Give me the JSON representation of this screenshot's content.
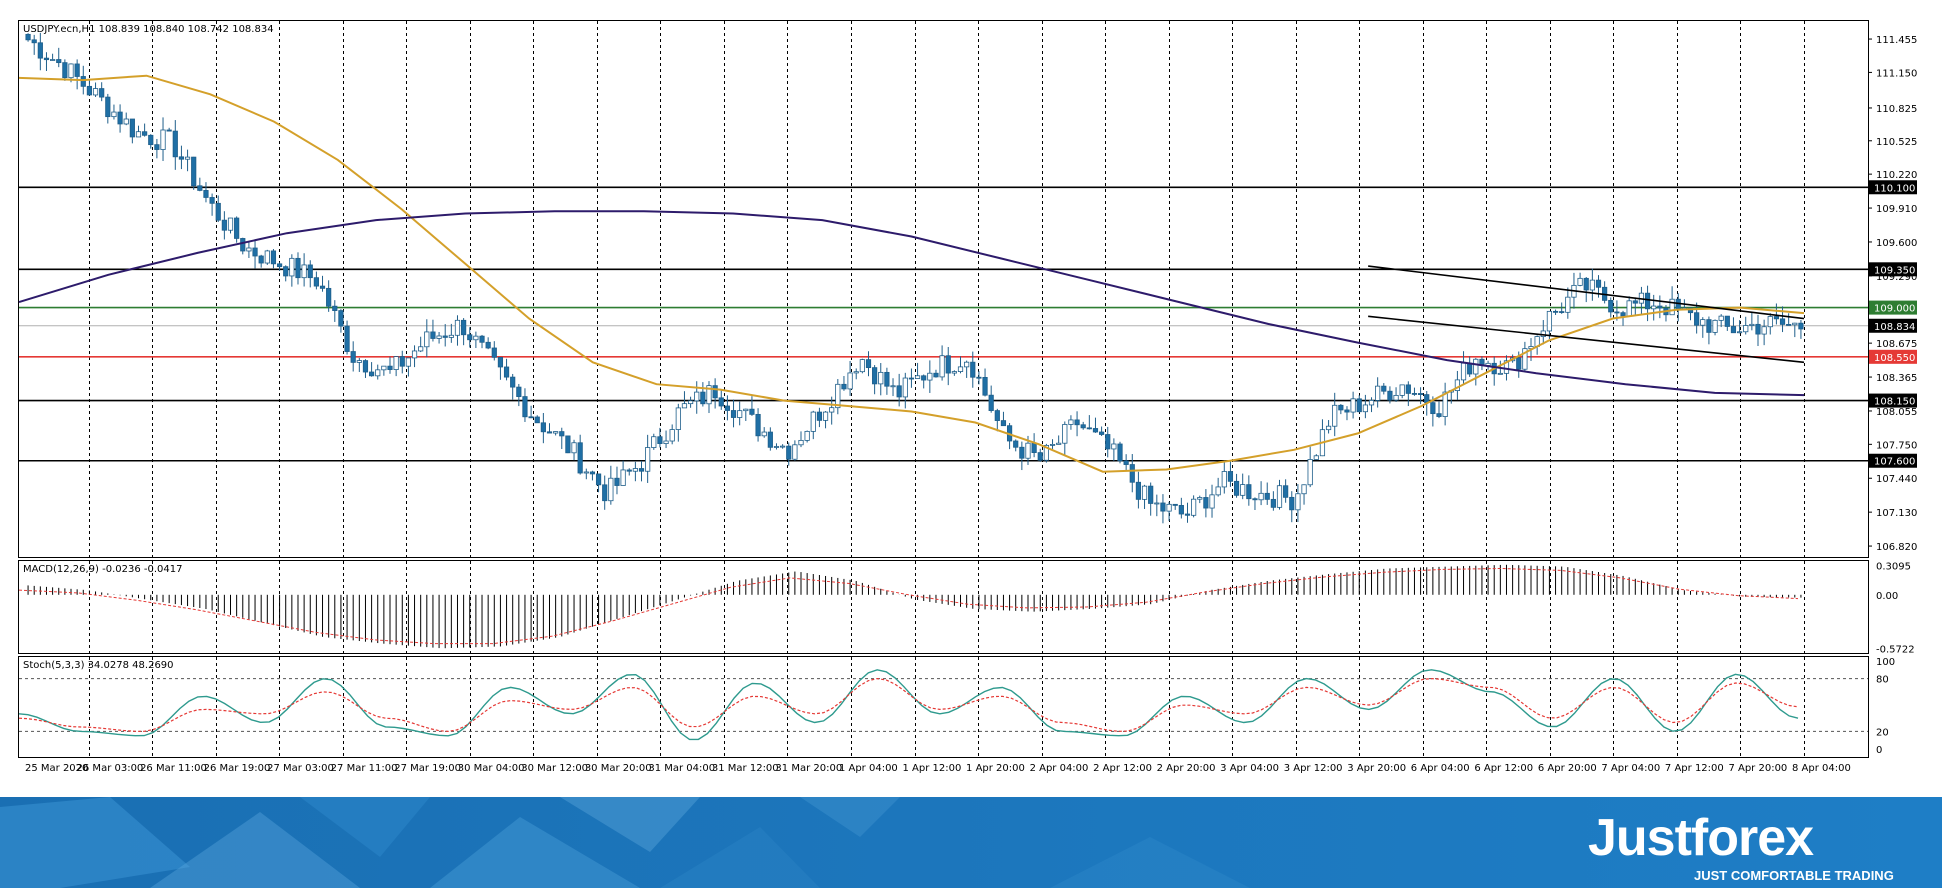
{
  "colors": {
    "background": "#ffffff",
    "candle_up": "#ffffff",
    "candle_down": "#1f6fa5",
    "ma_fast": "#d4a02a",
    "ma_slow": "#2d1b6b",
    "line_black": "#000000",
    "line_green": "#2e7d32",
    "line_red": "#e53935",
    "stoch_main": "#2e9a8e",
    "stoch_signal": "#e53935",
    "brand_bg": "#1e78bf"
  },
  "chart_data": [
    {
      "type": "candlestick",
      "title": "USDJPY.ecn,H1  108.839 108.840 108.742 108.834",
      "y_ticks": [
        "111.455",
        "111.150",
        "110.825",
        "110.525",
        "110.220",
        "109.910",
        "109.600",
        "109.290",
        "108.675",
        "108.365",
        "108.055",
        "107.750",
        "107.440",
        "107.130",
        "106.820"
      ],
      "ylim": [
        106.72,
        111.62
      ],
      "x_labels": [
        "25 Mar 2020",
        "26 Mar 03:00",
        "26 Mar 11:00",
        "26 Mar 19:00",
        "27 Mar 03:00",
        "27 Mar 11:00",
        "27 Mar 19:00",
        "30 Mar 04:00",
        "30 Mar 12:00",
        "30 Mar 20:00",
        "31 Mar 04:00",
        "31 Mar 12:00",
        "31 Mar 20:00",
        "1 Apr 04:00",
        "1 Apr 12:00",
        "1 Apr 20:00",
        "2 Apr 04:00",
        "2 Apr 12:00",
        "2 Apr 20:00",
        "3 Apr 04:00",
        "3 Apr 12:00",
        "3 Apr 20:00",
        "6 Apr 04:00",
        "6 Apr 12:00",
        "6 Apr 20:00",
        "7 Apr 04:00",
        "7 Apr 12:00",
        "7 Apr 20:00",
        "8 Apr 04:00"
      ],
      "close_path": [
        111.45,
        111.2,
        110.9,
        110.6,
        110.5,
        109.95,
        109.55,
        109.4,
        109.25,
        108.55,
        108.4,
        108.7,
        108.85,
        108.4,
        108.0,
        107.7,
        107.3,
        107.6,
        108.05,
        108.25,
        107.95,
        107.7,
        108.1,
        108.55,
        108.2,
        108.45,
        108.55,
        107.8,
        107.6,
        107.95,
        107.65,
        107.2,
        107.1,
        107.4,
        107.3,
        107.25,
        108.0,
        108.15,
        108.3,
        108.1,
        108.55,
        108.45,
        108.9,
        109.2,
        109.0,
        109.05,
        108.9,
        108.8,
        108.85,
        108.83
      ],
      "levels": [
        {
          "value": 110.1,
          "label": "110.100",
          "color": "#000000"
        },
        {
          "value": 109.35,
          "label": "109.350",
          "color": "#000000"
        },
        {
          "value": 109.0,
          "label": "109.000",
          "color": "#2e7d32"
        },
        {
          "value": 108.834,
          "label": "108.834",
          "color": "#000000"
        },
        {
          "value": 108.55,
          "label": "108.550",
          "color": "#e53935"
        },
        {
          "value": 108.15,
          "label": "108.150",
          "color": "#000000"
        },
        {
          "value": 107.6,
          "label": "107.600",
          "color": "#000000"
        }
      ],
      "ma_fast": [
        111.1,
        111.08,
        111.12,
        110.95,
        110.7,
        110.35,
        109.9,
        109.4,
        108.9,
        108.5,
        108.3,
        108.25,
        108.15,
        108.1,
        108.05,
        107.95,
        107.75,
        107.5,
        107.52,
        107.6,
        107.7,
        107.85,
        108.1,
        108.4,
        108.7,
        108.9,
        108.98,
        109.0,
        108.95
      ],
      "ma_slow": [
        109.05,
        109.3,
        109.5,
        109.68,
        109.8,
        109.86,
        109.88,
        109.88,
        109.86,
        109.8,
        109.65,
        109.45,
        109.25,
        109.05,
        108.85,
        108.68,
        108.52,
        108.4,
        108.3,
        108.22,
        108.2
      ],
      "channel": {
        "upper": {
          "from": 109.38,
          "to": 108.9
        },
        "lower": {
          "from": 108.92,
          "to": 108.5
        }
      },
      "xlabel": "",
      "ylabel": "",
      "grid": true
    },
    {
      "type": "bar",
      "title": "MACD(12,26,9) -0.0236 -0.0417",
      "y_ticks": [
        "0.3095",
        "0.00",
        "-0.5722"
      ],
      "ylim": [
        -0.62,
        0.36
      ],
      "values": [
        0.1,
        0.05,
        -0.05,
        -0.15,
        -0.3,
        -0.45,
        -0.52,
        -0.57,
        -0.55,
        -0.45,
        -0.25,
        -0.05,
        0.15,
        0.25,
        0.15,
        -0.05,
        -0.15,
        -0.18,
        -0.15,
        -0.1,
        0.05,
        0.15,
        0.22,
        0.28,
        0.3,
        0.32,
        0.3,
        0.2,
        0.05,
        -0.02,
        -0.03
      ],
      "signal": [
        0.05,
        0.02,
        -0.06,
        -0.16,
        -0.28,
        -0.4,
        -0.48,
        -0.52,
        -0.52,
        -0.44,
        -0.28,
        -0.1,
        0.08,
        0.18,
        0.12,
        0.0,
        -0.1,
        -0.14,
        -0.13,
        -0.08,
        0.03,
        0.12,
        0.19,
        0.24,
        0.27,
        0.28,
        0.26,
        0.18,
        0.06,
        -0.01,
        -0.04
      ]
    },
    {
      "type": "line",
      "title": "Stoch(5,3,3) 34.0278 48.2690",
      "y_ticks": [
        "100",
        "80",
        "20",
        "0"
      ],
      "ylim": [
        0,
        100
      ],
      "levels": [
        80,
        20
      ],
      "main": [
        40,
        20,
        15,
        60,
        30,
        80,
        25,
        15,
        70,
        40,
        85,
        10,
        75,
        30,
        90,
        40,
        70,
        20,
        15,
        60,
        30,
        80,
        45,
        90,
        65,
        25,
        80,
        20,
        85,
        35
      ],
      "signal": [
        35,
        25,
        20,
        45,
        40,
        65,
        35,
        20,
        55,
        45,
        70,
        25,
        60,
        40,
        80,
        45,
        60,
        30,
        20,
        50,
        40,
        70,
        50,
        80,
        70,
        35,
        70,
        30,
        75,
        48
      ]
    }
  ],
  "brand": {
    "name": "Justforex",
    "tagline": "JUST COMFORTABLE TRADING"
  }
}
